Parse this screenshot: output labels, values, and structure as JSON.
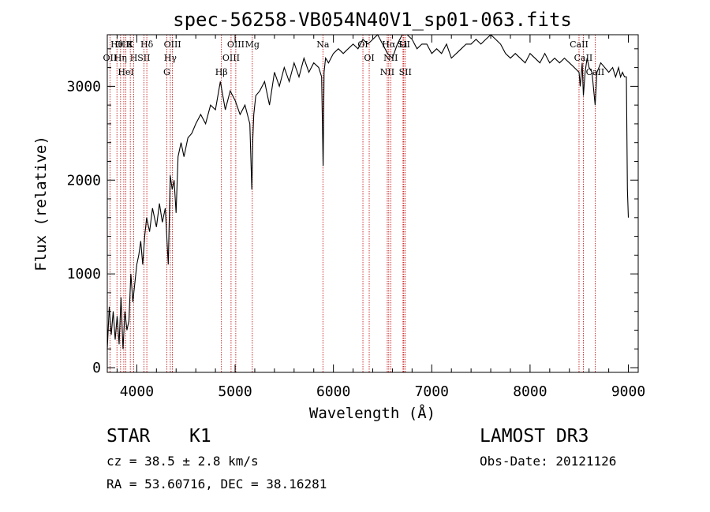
{
  "chart_data": {
    "type": "line",
    "title": "spec-56258-VB054N40V1_sp01-063.fits",
    "xlabel": "Wavelength (Å)",
    "ylabel": "Flux (relative)",
    "xlim": [
      3700,
      9100
    ],
    "ylim": [
      -50,
      3550
    ],
    "xticks": [
      4000,
      5000,
      6000,
      7000,
      8000,
      9000
    ],
    "yticks": [
      0,
      1000,
      2000,
      3000
    ],
    "series": [
      {
        "name": "flux",
        "x": [
          3700,
          3720,
          3740,
          3760,
          3780,
          3800,
          3820,
          3840,
          3860,
          3880,
          3900,
          3920,
          3940,
          3960,
          3980,
          4000,
          4020,
          4040,
          4060,
          4080,
          4100,
          4130,
          4160,
          4200,
          4230,
          4260,
          4290,
          4320,
          4340,
          4360,
          4380,
          4400,
          4420,
          4450,
          4480,
          4520,
          4560,
          4600,
          4650,
          4700,
          4750,
          4800,
          4850,
          4900,
          4950,
          5000,
          5050,
          5100,
          5150,
          5170,
          5180,
          5190,
          5210,
          5250,
          5300,
          5350,
          5400,
          5450,
          5500,
          5550,
          5600,
          5650,
          5700,
          5750,
          5800,
          5850,
          5880,
          5895,
          5905,
          5920,
          5950,
          6000,
          6050,
          6100,
          6150,
          6200,
          6250,
          6300,
          6350,
          6400,
          6450,
          6500,
          6550,
          6600,
          6650,
          6700,
          6750,
          6800,
          6850,
          6900,
          6950,
          7000,
          7050,
          7100,
          7150,
          7200,
          7250,
          7300,
          7350,
          7400,
          7450,
          7500,
          7550,
          7600,
          7650,
          7700,
          7750,
          7800,
          7850,
          7900,
          7950,
          8000,
          8050,
          8100,
          8150,
          8200,
          8250,
          8300,
          8350,
          8400,
          8450,
          8498,
          8510,
          8530,
          8542,
          8560,
          8580,
          8600,
          8630,
          8662,
          8680,
          8720,
          8760,
          8800,
          8840,
          8870,
          8900,
          8920,
          8940,
          8960,
          8980,
          8990,
          9000
        ],
        "values": [
          200,
          650,
          350,
          600,
          300,
          550,
          250,
          750,
          200,
          600,
          400,
          500,
          1000,
          700,
          900,
          1100,
          1200,
          1350,
          1100,
          1400,
          1600,
          1450,
          1700,
          1500,
          1750,
          1550,
          1700,
          1100,
          2050,
          1900,
          2000,
          1650,
          2250,
          2400,
          2250,
          2450,
          2500,
          2600,
          2700,
          2600,
          2800,
          2750,
          3050,
          2750,
          2950,
          2850,
          2700,
          2800,
          2600,
          1900,
          2450,
          2700,
          2900,
          2950,
          3050,
          2800,
          3150,
          3000,
          3200,
          3050,
          3250,
          3100,
          3300,
          3150,
          3250,
          3200,
          3100,
          2150,
          3150,
          3300,
          3250,
          3350,
          3400,
          3350,
          3400,
          3450,
          3400,
          3500,
          3450,
          3500,
          3550,
          3450,
          3350,
          3300,
          3450,
          3550,
          3550,
          3500,
          3400,
          3450,
          3450,
          3350,
          3400,
          3350,
          3450,
          3300,
          3350,
          3400,
          3450,
          3450,
          3500,
          3450,
          3500,
          3550,
          3500,
          3450,
          3350,
          3300,
          3350,
          3300,
          3250,
          3350,
          3300,
          3250,
          3350,
          3250,
          3300,
          3250,
          3300,
          3250,
          3200,
          3150,
          3000,
          3250,
          2900,
          3150,
          3300,
          3200,
          3150,
          2800,
          3150,
          3250,
          3200,
          3150,
          3200,
          3100,
          3200,
          3100,
          3150,
          3100,
          3100,
          1900,
          1600
        ]
      }
    ],
    "lines": [
      {
        "label": "Hθ",
        "wl": 3798
      },
      {
        "label": "K",
        "wl": 3934
      },
      {
        "label": "Hδ",
        "wl": 4102
      },
      {
        "label": "OII",
        "wl": 3727
      },
      {
        "label": "HeI",
        "wl": 3889
      },
      {
        "label": "SII",
        "wl": 4072
      },
      {
        "label": "OIII",
        "wl": 3868
      },
      {
        "label": "Hη",
        "wl": 3835
      },
      {
        "label": "H",
        "wl": 3969
      },
      {
        "label": "OIII",
        "wl": 4363
      },
      {
        "label": "Hγ",
        "wl": 4341
      },
      {
        "label": "G",
        "wl": 4305
      },
      {
        "label": "OIII",
        "wl": 5007
      },
      {
        "label": "OIII",
        "wl": 4959
      },
      {
        "label": "Hβ",
        "wl": 4861
      },
      {
        "label": "Mg",
        "wl": 5175
      },
      {
        "label": "Na",
        "wl": 5893
      },
      {
        "label": "OI",
        "wl": 6300
      },
      {
        "label": "OI",
        "wl": 6364
      },
      {
        "label": "Hα",
        "wl": 6563
      },
      {
        "label": "NII",
        "wl": 6583
      },
      {
        "label": "NII",
        "wl": 6548
      },
      {
        "label": "SII",
        "wl": 6716
      },
      {
        "label": "SII",
        "wl": 6731
      },
      {
        "label": "Li",
        "wl": 6708
      },
      {
        "label": "CaII",
        "wl": 8498
      },
      {
        "label": "CaII",
        "wl": 8542
      },
      {
        "label": "CaII",
        "wl": 8662
      }
    ]
  },
  "info": {
    "object_class": "STAR",
    "subclass": "K1",
    "survey": "LAMOST DR3",
    "cz": "cz = 38.5 ± 2.8 km/s",
    "obs_date": "Obs-Date: 20121126",
    "coords": "RA =  53.60716, DEC =  38.16281"
  }
}
